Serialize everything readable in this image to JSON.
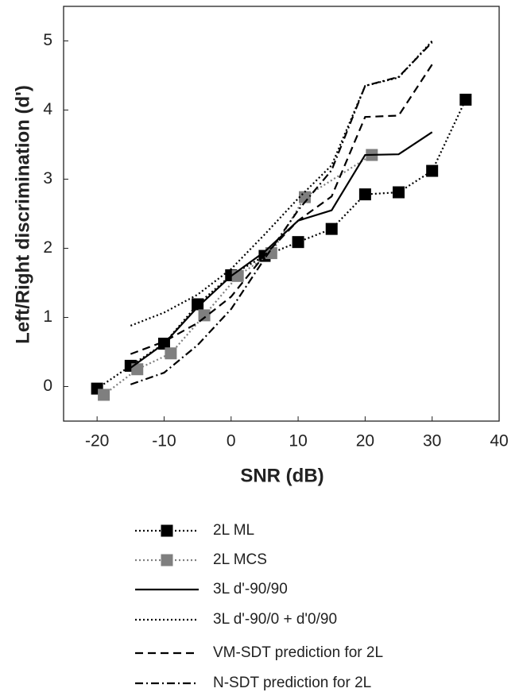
{
  "chart_data": {
    "type": "line",
    "xlabel": "SNR (dB)",
    "ylabel": "Left/Right discrimination (d')",
    "xlim": [
      -25,
      40
    ],
    "xticks": [
      -20,
      -10,
      0,
      10,
      20,
      30,
      40
    ],
    "ylim": [
      -0.5,
      5.5
    ],
    "yticks": [
      0,
      1,
      2,
      3,
      4,
      5
    ],
    "series": [
      {
        "name": "2L ML",
        "color": "#000000",
        "linestyle": "dotted",
        "marker": "square",
        "x": [
          -20,
          -15,
          -10,
          -5,
          0,
          5,
          10,
          15,
          20,
          25,
          30,
          35
        ],
        "values": [
          -0.03,
          0.3,
          0.62,
          1.19,
          1.61,
          1.89,
          2.09,
          2.28,
          2.78,
          2.81,
          3.12,
          4.15
        ]
      },
      {
        "name": "2L MCS",
        "color": "#7f7f7f",
        "linestyle": "dotted",
        "marker": "square",
        "x": [
          -19,
          -14,
          -9,
          -4,
          1,
          6,
          11,
          21
        ],
        "values": [
          -0.12,
          0.25,
          0.48,
          1.03,
          1.6,
          1.93,
          2.74,
          3.35
        ]
      },
      {
        "name": "3L d'-90/90",
        "color": "#000000",
        "linestyle": "solid",
        "x": [
          -15,
          -10,
          -5,
          0,
          5,
          10,
          15,
          20,
          25,
          30
        ],
        "values": [
          0.27,
          0.62,
          1.15,
          1.6,
          1.95,
          2.4,
          2.55,
          3.35,
          3.36,
          3.68
        ]
      },
      {
        "name": "3L d'-90/0 + d'0/90",
        "color": "#000000",
        "linestyle": "dotted",
        "x": [
          -15,
          -10,
          -5,
          0,
          5,
          10,
          15,
          20,
          25,
          30
        ],
        "values": [
          0.88,
          1.07,
          1.33,
          1.7,
          2.2,
          2.72,
          3.2,
          4.35,
          4.47,
          5.0
        ]
      },
      {
        "name": "VM-SDT prediction for 2L",
        "color": "#000000",
        "linestyle": "dashed",
        "x": [
          -15,
          -10,
          -5,
          0,
          5,
          10,
          15,
          20,
          25,
          30
        ],
        "values": [
          0.47,
          0.65,
          0.92,
          1.3,
          1.9,
          2.4,
          2.75,
          3.9,
          3.92,
          4.66
        ]
      },
      {
        "name": "N-SDT prediction for 2L",
        "color": "#000000",
        "linestyle": "dashdot",
        "x": [
          -15,
          -10,
          -5,
          0,
          5,
          10,
          15,
          20,
          25,
          30
        ],
        "values": [
          0.03,
          0.2,
          0.6,
          1.12,
          1.85,
          2.55,
          3.13,
          4.35,
          4.48,
          4.98
        ]
      }
    ]
  }
}
